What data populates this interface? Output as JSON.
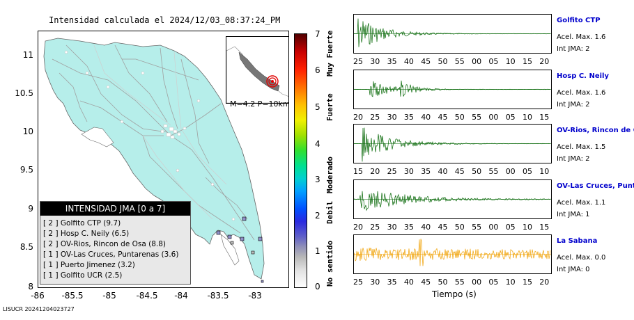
{
  "map": {
    "title": "Intensidad calculada el 2024/12/03_08:37:24_PM",
    "y_ticks": [
      "11",
      "10.5",
      "10",
      "9.5",
      "9",
      "8.5",
      "8"
    ],
    "x_ticks": [
      "-86",
      "-85.5",
      "-85",
      "-84.5",
      "-84",
      "-83.5",
      "-83"
    ],
    "inset_label": "M=4.2 P=10km",
    "land_color": "#b6eeea",
    "epicenter_color": "#e00000"
  },
  "legend": {
    "title": "INTENSIDAD JMA [0 a 7]",
    "rows": [
      "[ 2 ]  Golfito CTP (9.7)",
      "[ 2 ]  Hosp C. Neily (6.5)",
      "[ 2 ]  OV-Rios, Rincon de Osa (8.8)",
      "[ 1 ]  OV-Las Cruces, Puntarenas (3.6)",
      "[ 1 ]  Puerto Jimenez (3.2)",
      "[ 1 ]  Golfito UCR (2.5)"
    ]
  },
  "scale": {
    "numbers": [
      "7",
      "6",
      "5",
      "4",
      "3",
      "2",
      "1",
      "0"
    ],
    "words": [
      "Muy Fuerte",
      "Fuerte",
      "Moderado",
      "Debil",
      "No sentido"
    ]
  },
  "footer_id": "LISUCR 20241204023727",
  "time_axis_label": "Tiempo (s)",
  "stations": [
    {
      "name": "Golfito CTP",
      "acel": "Acel. Max. 1.6",
      "jma": "Int JMA: 2",
      "ticks": [
        "25",
        "30",
        "35",
        "40",
        "45",
        "50",
        "55",
        "00",
        "05",
        "10",
        "15",
        "20"
      ],
      "color": "#006400"
    },
    {
      "name": "Hosp C. Neily",
      "acel": "Acel. Max. 1.6",
      "jma": "Int JMA: 2",
      "ticks": [
        "20",
        "25",
        "30",
        "35",
        "40",
        "45",
        "50",
        "55",
        "00",
        "05",
        "10",
        "15"
      ],
      "color": "#006400"
    },
    {
      "name": "OV-Rios, Rincon de Os",
      "acel": "Acel. Max. 1.5",
      "jma": "Int JMA: 2",
      "ticks": [
        "15",
        "20",
        "25",
        "30",
        "35",
        "40",
        "45",
        "50",
        "55",
        "00",
        "05",
        "10"
      ],
      "color": "#006400"
    },
    {
      "name": "OV-Las Cruces, Puntar",
      "acel": "Acel. Max. 1.1",
      "jma": "Int JMA: 1",
      "ticks": [
        "20",
        "25",
        "30",
        "35",
        "40",
        "45",
        "50",
        "55",
        "00",
        "05",
        "10",
        "15"
      ],
      "color": "#006400"
    },
    {
      "name": "La Sabana",
      "acel": "Acel. Max. 0.0",
      "jma": "Int JMA: 0",
      "ticks": [
        "25",
        "30",
        "35",
        "40",
        "45",
        "50",
        "55",
        "00",
        "05",
        "10",
        "15",
        "20"
      ],
      "color": "#f0a000"
    }
  ]
}
